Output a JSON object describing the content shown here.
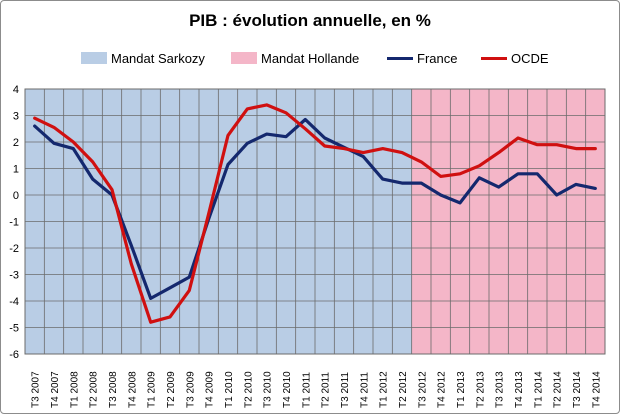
{
  "chart_data": {
    "type": "line",
    "title": "PIB : évolution annuelle, en %",
    "ylim": [
      -6,
      4
    ],
    "yticks": [
      4,
      3,
      2,
      1,
      0,
      -1,
      -2,
      -3,
      -4,
      -5,
      -6
    ],
    "grid": true,
    "legend_position": "top",
    "categories": [
      "T3 2007",
      "T4 2007",
      "T1 2008",
      "T2 2008",
      "T3 2008",
      "T4 2008",
      "T1 2009",
      "T2 2009",
      "T3 2009",
      "T4 2009",
      "T1 2010",
      "T2 2010",
      "T3 2010",
      "T4 2010",
      "T1 2011",
      "T2 2011",
      "T3 2011",
      "T4 2011",
      "T1 2012",
      "T2 2012",
      "T3 2012",
      "T4 2012",
      "T1 2013",
      "T2 2013",
      "T3 2013",
      "T4 2013",
      "T1 2014",
      "T2 2014",
      "T3 2014",
      "T4 2014"
    ],
    "periods": [
      {
        "name": "Mandat Sarkozy",
        "from": "T3 2007",
        "to": "T2 2012",
        "color": "#b9cde5"
      },
      {
        "name": "Mandat Hollande",
        "from": "T3 2012",
        "to": "T4 2014",
        "color": "#f4b6c8"
      }
    ],
    "series": [
      {
        "name": "France",
        "color": "#14286e",
        "values": [
          2.6,
          1.95,
          1.75,
          0.6,
          0.0,
          -1.9,
          -3.9,
          -3.5,
          -3.1,
          -0.9,
          1.15,
          1.95,
          2.3,
          2.2,
          2.85,
          2.15,
          1.8,
          1.45,
          0.6,
          0.45,
          0.45,
          0.0,
          -0.3,
          0.65,
          0.3,
          0.8,
          0.8,
          0.0,
          0.4,
          0.25
        ]
      },
      {
        "name": "OCDE",
        "color": "#d01010",
        "values": [
          2.9,
          2.55,
          2.0,
          1.25,
          0.2,
          -2.6,
          -4.8,
          -4.6,
          -3.6,
          -0.7,
          2.25,
          3.25,
          3.4,
          3.1,
          2.5,
          1.85,
          1.75,
          1.6,
          1.75,
          1.6,
          1.25,
          0.7,
          0.8,
          1.1,
          1.6,
          2.15,
          1.9,
          1.9,
          1.75,
          1.75
        ]
      }
    ]
  }
}
